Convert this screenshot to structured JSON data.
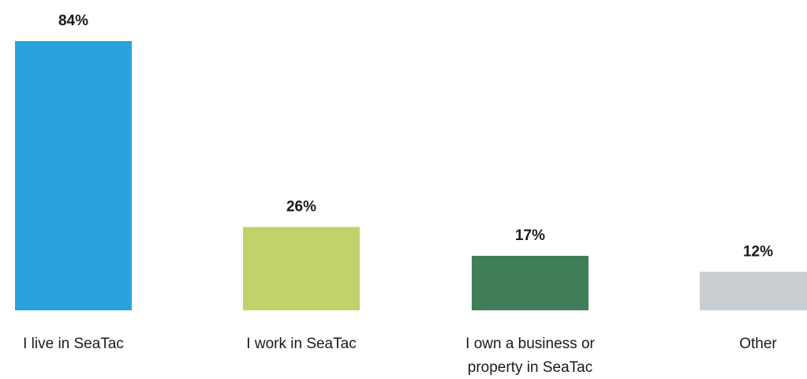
{
  "chart_data": {
    "type": "bar",
    "categories": [
      [
        "I live in SeaTac"
      ],
      [
        "I work in SeaTac"
      ],
      [
        "I own a business or",
        "property in SeaTac"
      ],
      [
        "Other"
      ]
    ],
    "values": [
      84,
      26,
      17,
      12
    ],
    "value_labels": [
      "84%",
      "26%",
      "17%",
      "12%"
    ],
    "colors": [
      "#29a3dc",
      "#c0d36b",
      "#3f7e58",
      "#c8cdd2"
    ],
    "ylim": [
      0,
      84
    ],
    "grid": false,
    "legend": "none"
  }
}
